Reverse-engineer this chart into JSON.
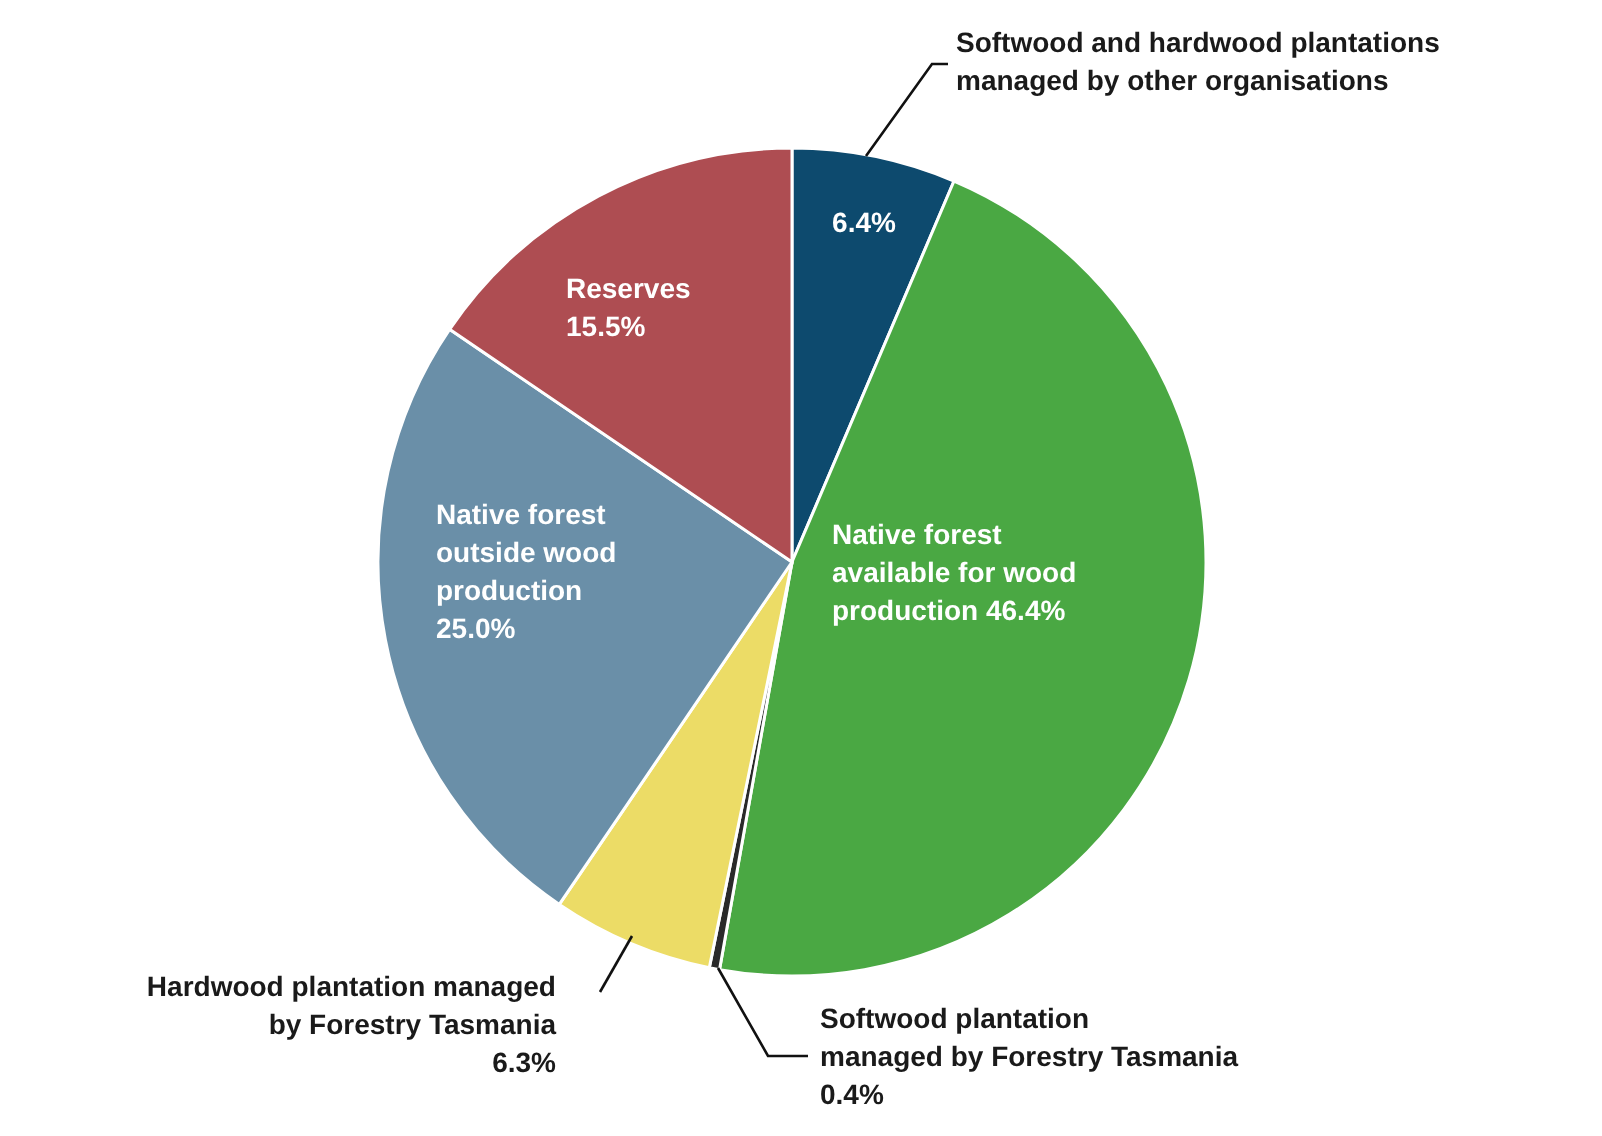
{
  "chart_data": {
    "type": "pie",
    "categories": [
      "Softwood and hardwood plantations managed by other organisations",
      "Native forest available for wood production",
      "Softwood plantation managed by Forestry Tasmania",
      "Hardwood plantation managed by Forestry Tasmania",
      "Native forest outside wood production",
      "Reserves"
    ],
    "values": [
      6.4,
      46.4,
      0.4,
      6.3,
      25.0,
      15.5
    ],
    "value_labels": [
      "6.4%",
      "46.4%",
      "0.4%",
      "6.3%",
      "25.0%",
      "15.5%"
    ],
    "colors": [
      "#0d4a6e",
      "#4aa843",
      "#2a2a2a",
      "#ecdc66",
      "#6a8fa8",
      "#ae4d52"
    ]
  }
}
